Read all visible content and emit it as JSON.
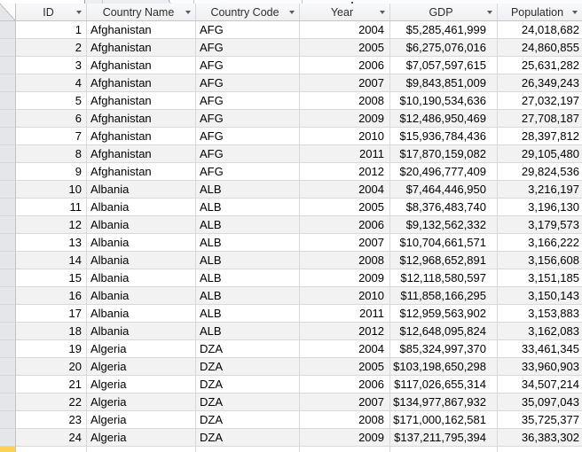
{
  "colors": {
    "header_bg_top": "#f8f9fa",
    "header_bg_bottom": "#eef0f2",
    "header_border": "#c3c7cb",
    "grid_line": "#d9d9d9",
    "alt_row": "#f2f2f2",
    "selector_bg": "#e4e6e9",
    "selector_border": "#c2c6cb",
    "current_record_marker": "#fbd157"
  },
  "table": {
    "columns": [
      {
        "key": "id",
        "label": "ID"
      },
      {
        "key": "country_name",
        "label": "Country Name"
      },
      {
        "key": "country_code",
        "label": "Country Code"
      },
      {
        "key": "year",
        "label": "Year"
      },
      {
        "key": "gdp",
        "label": "GDP"
      },
      {
        "key": "population",
        "label": "Population"
      }
    ],
    "rows": [
      [
        "1",
        "Afghanistan",
        "AFG",
        "2004",
        "$5,285,461,999",
        "24,018,682"
      ],
      [
        "2",
        "Afghanistan",
        "AFG",
        "2005",
        "$6,275,076,016",
        "24,860,855"
      ],
      [
        "3",
        "Afghanistan",
        "AFG",
        "2006",
        "$7,057,597,615",
        "25,631,282"
      ],
      [
        "4",
        "Afghanistan",
        "AFG",
        "2007",
        "$9,843,851,009",
        "26,349,243"
      ],
      [
        "5",
        "Afghanistan",
        "AFG",
        "2008",
        "$10,190,534,636",
        "27,032,197"
      ],
      [
        "6",
        "Afghanistan",
        "AFG",
        "2009",
        "$12,486,950,469",
        "27,708,187"
      ],
      [
        "7",
        "Afghanistan",
        "AFG",
        "2010",
        "$15,936,784,436",
        "28,397,812"
      ],
      [
        "8",
        "Afghanistan",
        "AFG",
        "2011",
        "$17,870,159,082",
        "29,105,480"
      ],
      [
        "9",
        "Afghanistan",
        "AFG",
        "2012",
        "$20,496,777,409",
        "29,824,536"
      ],
      [
        "10",
        "Albania",
        "ALB",
        "2004",
        "$7,464,446,950",
        "3,216,197"
      ],
      [
        "11",
        "Albania",
        "ALB",
        "2005",
        "$8,376,483,740",
        "3,196,130"
      ],
      [
        "12",
        "Albania",
        "ALB",
        "2006",
        "$9,132,562,332",
        "3,179,573"
      ],
      [
        "13",
        "Albania",
        "ALB",
        "2007",
        "$10,704,661,571",
        "3,166,222"
      ],
      [
        "14",
        "Albania",
        "ALB",
        "2008",
        "$12,968,652,891",
        "3,156,608"
      ],
      [
        "15",
        "Albania",
        "ALB",
        "2009",
        "$12,118,580,597",
        "3,151,185"
      ],
      [
        "16",
        "Albania",
        "ALB",
        "2010",
        "$11,858,166,295",
        "3,150,143"
      ],
      [
        "17",
        "Albania",
        "ALB",
        "2011",
        "$12,959,563,902",
        "3,153,883"
      ],
      [
        "18",
        "Albania",
        "ALB",
        "2012",
        "$12,648,095,824",
        "3,162,083"
      ],
      [
        "19",
        "Algeria",
        "DZA",
        "2004",
        "$85,324,997,370",
        "33,461,345"
      ],
      [
        "20",
        "Algeria",
        "DZA",
        "2005",
        "$103,198,650,298",
        "33,960,903"
      ],
      [
        "21",
        "Algeria",
        "DZA",
        "2006",
        "$117,026,655,314",
        "34,507,214"
      ],
      [
        "22",
        "Algeria",
        "DZA",
        "2007",
        "$134,977,867,932",
        "35,097,043"
      ],
      [
        "23",
        "Algeria",
        "DZA",
        "2008",
        "$171,000,162,581",
        "35,725,377"
      ],
      [
        "24",
        "Algeria",
        "DZA",
        "2009",
        "$137,211,795,394",
        "36,383,302"
      ]
    ],
    "new_record_cells": [
      "",
      "",
      "",
      "",
      "",
      ""
    ]
  }
}
